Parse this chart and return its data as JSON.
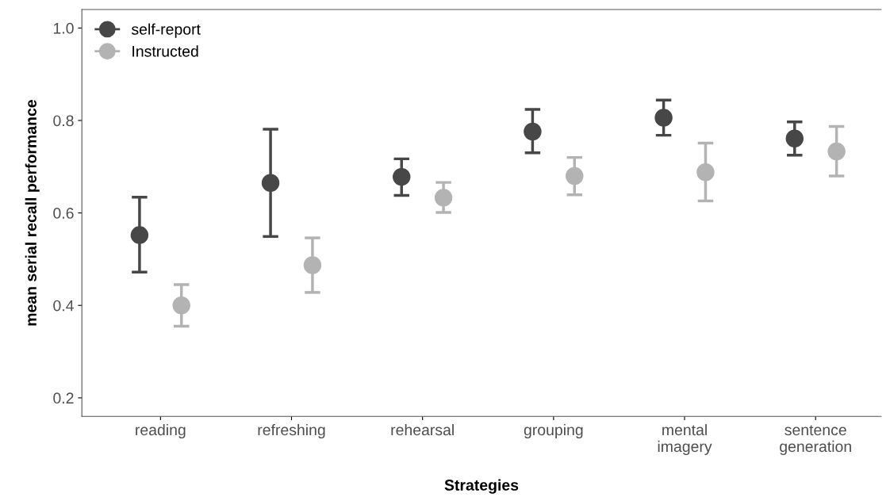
{
  "chart_data": {
    "type": "scatter",
    "xlabel": "Strategies",
    "ylabel": "mean serial recall performance",
    "categories": [
      "reading",
      "refreshing",
      "rehearsal",
      "grouping",
      "mental\nimagery",
      "sentence\ngeneration"
    ],
    "series": [
      {
        "name": "self-report",
        "color": "#474747",
        "values": [
          0.552,
          0.665,
          0.678,
          0.776,
          0.806,
          0.761
        ],
        "errors": [
          [
            0.472,
            0.634
          ],
          [
            0.549,
            0.781
          ],
          [
            0.638,
            0.717
          ],
          [
            0.73,
            0.824
          ],
          [
            0.768,
            0.844
          ],
          [
            0.725,
            0.797
          ]
        ]
      },
      {
        "name": "Instructed",
        "color": "#b3b3b3",
        "values": [
          0.4,
          0.487,
          0.633,
          0.68,
          0.688,
          0.733
        ],
        "errors": [
          [
            0.355,
            0.445
          ],
          [
            0.428,
            0.546
          ],
          [
            0.601,
            0.666
          ],
          [
            0.639,
            0.72
          ],
          [
            0.626,
            0.751
          ],
          [
            0.68,
            0.787
          ]
        ]
      }
    ],
    "ylim": [
      0.16,
      1.04
    ],
    "yticks": [
      0.2,
      0.4,
      0.6,
      0.8,
      {
        "value": 1,
        "label": "1.0"
      }
    ],
    "grid": false,
    "legend": "top left",
    "marker": "circle"
  }
}
